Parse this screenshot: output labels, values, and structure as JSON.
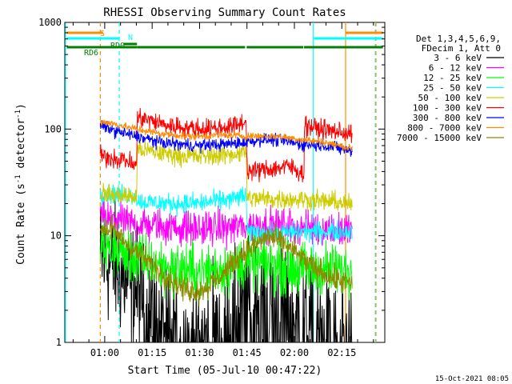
{
  "chart_data": {
    "type": "line",
    "title": "RHESSI Observing Summary Count Rates",
    "xlabel": "Start Time (05-Jul-10 00:47:22)",
    "ylabel_main": "Count Rate (s",
    "ylabel_sup1": "-1",
    "ylabel_mid": " detector",
    "ylabel_sup2": "-1",
    "ylabel_end": ")",
    "yscale": "log",
    "ylim": [
      1,
      1000
    ],
    "xlim_minutes": [
      47.37,
      148.6
    ],
    "x_ticks": [
      {
        "m": 60,
        "label": "01:00"
      },
      {
        "m": 75,
        "label": "01:15"
      },
      {
        "m": 90,
        "label": "01:30"
      },
      {
        "m": 105,
        "label": "01:45"
      },
      {
        "m": 120,
        "label": "02:00"
      },
      {
        "m": 135,
        "label": "02:15"
      }
    ],
    "y_ticks": [
      {
        "v": 1,
        "label": "1"
      },
      {
        "v": 10,
        "label": "10"
      },
      {
        "v": 100,
        "label": "100"
      },
      {
        "v": 1000,
        "label": "1000"
      }
    ],
    "legend_header": [
      "Det 1,3,4,5,6,9,",
      "FDecim 1, Att 0"
    ],
    "data_start": 58.6,
    "data_end": 138.4,
    "attenuator_steps": [
      70.2,
      104.9,
      123.0
    ],
    "series": [
      {
        "name": "3 - 6 keV",
        "color": "#000000",
        "level_points": [
          [
            58.6,
            6.0
          ],
          [
            63,
            5.2
          ],
          [
            70,
            3.0
          ],
          [
            76,
            2.0
          ],
          [
            86,
            1.0
          ],
          [
            97,
            1.2
          ],
          [
            104,
            2.4
          ],
          [
            108,
            3.2
          ],
          [
            115,
            2.8
          ],
          [
            122,
            2.0
          ],
          [
            127,
            1.5
          ],
          [
            134,
            1.0
          ],
          [
            138.4,
            1.0
          ]
        ],
        "noise": 0.5
      },
      {
        "name": "6 - 12 keV",
        "color": "#ff00ff",
        "level_points": [
          [
            58.6,
            15.0
          ],
          [
            63,
            14.0
          ],
          [
            70,
            13.0
          ],
          [
            80,
            12.0
          ],
          [
            90,
            11.6
          ],
          [
            100,
            12.0
          ],
          [
            105,
            12.4
          ],
          [
            115,
            12.5
          ],
          [
            125,
            11.8
          ],
          [
            138.4,
            11.0
          ]
        ],
        "noise": 0.14
      },
      {
        "name": "12 - 25 keV",
        "color": "#00ff00",
        "level_points": [
          [
            58.6,
            8.0
          ],
          [
            65,
            7.0
          ],
          [
            70,
            6.0
          ],
          [
            80,
            5.0
          ],
          [
            90,
            4.6
          ],
          [
            100,
            5.0
          ],
          [
            104.9,
            5.5
          ],
          [
            110,
            5.5
          ],
          [
            118,
            5.0
          ],
          [
            125,
            4.8
          ],
          [
            132,
            4.8
          ],
          [
            138.4,
            4.5
          ]
        ],
        "noise": 0.22
      },
      {
        "name": "25 - 50 keV",
        "color": "#00ffff",
        "level_points": [
          [
            58.6,
            25.0
          ],
          [
            70.1,
            24.0
          ],
          [
            70.3,
            21.0
          ],
          [
            80,
            20.0
          ],
          [
            90,
            20.2
          ],
          [
            100,
            22.0
          ],
          [
            104.8,
            24.0
          ],
          [
            105,
            10.8
          ],
          [
            115,
            10.5
          ],
          [
            123,
            11.0
          ],
          [
            138.4,
            11.0
          ]
        ],
        "noise": 0.08
      },
      {
        "name": "50 - 100 keV",
        "color": "#cccc00",
        "level_points": [
          [
            58.6,
            25.0
          ],
          [
            70.1,
            23.0
          ],
          [
            70.3,
            65.0
          ],
          [
            80,
            58.0
          ],
          [
            90,
            55.0
          ],
          [
            100,
            58.0
          ],
          [
            104.8,
            62.0
          ],
          [
            105,
            22.5
          ],
          [
            115,
            22.0
          ],
          [
            123,
            22.0
          ],
          [
            138.4,
            20.0
          ]
        ],
        "noise": 0.08
      },
      {
        "name": "100 - 300 keV",
        "color": "#ff0000",
        "level_points": [
          [
            58.6,
            56.0
          ],
          [
            66,
            52.0
          ],
          [
            70.1,
            45.0
          ],
          [
            70.3,
            130.0
          ],
          [
            80,
            108.0
          ],
          [
            90,
            100.0
          ],
          [
            100,
            105.0
          ],
          [
            104.8,
            118.0
          ],
          [
            105,
            40.0
          ],
          [
            112,
            42.0
          ],
          [
            118,
            45.0
          ],
          [
            123,
            38.0
          ],
          [
            123.2,
            110.0
          ],
          [
            128,
            100.0
          ],
          [
            138.4,
            90.0
          ]
        ],
        "noise": 0.08
      },
      {
        "name": "300 - 800 keV",
        "color": "#0000ff",
        "level_points": [
          [
            58.6,
            108.0
          ],
          [
            63,
            97.0
          ],
          [
            70,
            85.0
          ],
          [
            78,
            75.0
          ],
          [
            88,
            70.0
          ],
          [
            98,
            72.0
          ],
          [
            104,
            75.0
          ],
          [
            110,
            80.0
          ],
          [
            116,
            78.0
          ],
          [
            122,
            72.0
          ],
          [
            130,
            70.0
          ],
          [
            138.4,
            62.0
          ]
        ],
        "noise": 0.05
      },
      {
        "name": "800 - 7000 keV",
        "color": "#ff8c00",
        "level_points": [
          [
            58.6,
            118.0
          ],
          [
            63,
            112.0
          ],
          [
            70,
            100.0
          ],
          [
            78,
            90.0
          ],
          [
            88,
            85.0
          ],
          [
            98,
            88.0
          ],
          [
            104,
            86.0
          ],
          [
            110,
            86.0
          ],
          [
            116,
            85.0
          ],
          [
            122,
            80.0
          ],
          [
            130,
            75.0
          ],
          [
            138.4,
            65.0
          ]
        ],
        "noise": 0.03
      },
      {
        "name": "7000 - 15000 keV",
        "color": "#8b8b00",
        "level_points": [
          [
            58.6,
            12.0
          ],
          [
            63,
            11.0
          ],
          [
            70,
            7.0
          ],
          [
            78,
            4.5
          ],
          [
            85,
            3.2
          ],
          [
            90,
            3.0
          ],
          [
            96,
            4.0
          ],
          [
            104,
            7.0
          ],
          [
            112,
            10.0
          ],
          [
            118,
            8.0
          ],
          [
            126,
            5.0
          ],
          [
            132,
            4.0
          ],
          [
            138.4,
            3.5
          ]
        ],
        "noise": 0.1
      }
    ],
    "state_bars": [
      {
        "label": "S",
        "color": "#ff8c00",
        "segments": [
          [
            48.0,
            59.5
          ],
          [
            136.3,
            148.0
          ]
        ]
      },
      {
        "label": "N",
        "color": "#00ffff",
        "segments": [
          [
            48.0,
            64.5
          ],
          [
            126.2,
            148.0
          ]
        ]
      },
      {
        "label": "RD0",
        "color": "#008000",
        "segments": [
          [
            66.0,
            70.2
          ]
        ]
      },
      {
        "label": "RD6",
        "color": "#008000",
        "segments": [
          [
            48.0,
            70.2
          ],
          [
            70.2,
            104.4
          ],
          [
            104.9,
            122.8
          ],
          [
            123.0,
            148.0
          ]
        ]
      }
    ],
    "vlines": [
      {
        "m": 47.6,
        "color": "#00ffff",
        "dash": false
      },
      {
        "m": 58.6,
        "color": "#ff8c00",
        "dash": true
      },
      {
        "m": 64.6,
        "color": "#00ffff",
        "dash": true
      },
      {
        "m": 126.0,
        "color": "#00ffff",
        "dash": false
      },
      {
        "m": 136.2,
        "color": "#ff8c00",
        "dash": false
      },
      {
        "m": 145.6,
        "color": "#00ffff",
        "dash": true
      },
      {
        "m": 145.8,
        "color": "#ff8c00",
        "dash": true
      }
    ],
    "timestamp": "15-Oct-2021 08:05"
  }
}
